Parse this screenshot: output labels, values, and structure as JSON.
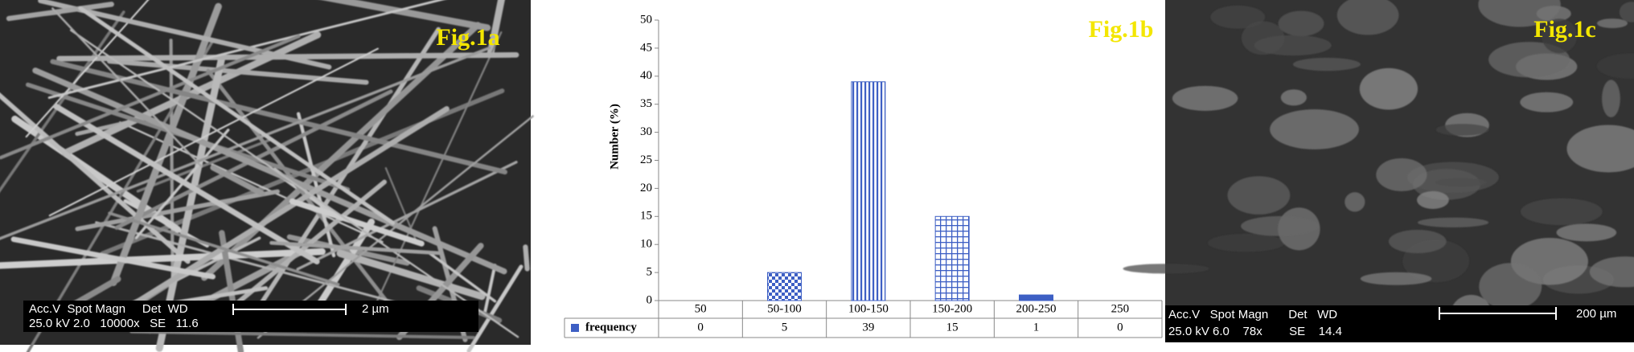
{
  "chart_data": {
    "type": "bar",
    "title": "Fig.1b",
    "y_label": "Number (%)",
    "categories": [
      "50",
      "50-100",
      "100-150",
      "150-200",
      "200-250",
      "250"
    ],
    "series": [
      {
        "name": "frequency",
        "color": "#3d5fc4",
        "values": [
          0,
          5,
          39,
          15,
          1,
          0
        ]
      }
    ],
    "ylim": [
      0,
      50
    ],
    "yticks": [
      0,
      5,
      10,
      15,
      20,
      25,
      30,
      35,
      40,
      45,
      50
    ]
  },
  "images": [
    {
      "label": "Fig.1a",
      "info_header": "Acc.V  Spot Magn     Det  WD",
      "info_values": "25.0 kV 2.0   10000x   SE   11.6",
      "scale": "2 µm"
    },
    {
      "label": "Fig.1c",
      "info_header": "Acc.V   Spot Magn      Det   WD",
      "info_values": "25.0 kV 6.0    78x        SE    14.4",
      "scale": "200 µm"
    }
  ]
}
